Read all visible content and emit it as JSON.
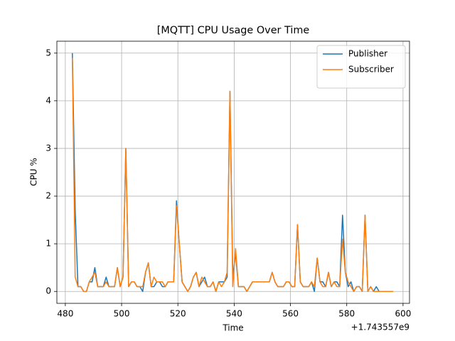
{
  "chart_data": {
    "type": "line",
    "title": "[MQTT] CPU Usage Over Time",
    "xlabel": "Time",
    "ylabel": "CPU %",
    "x_offset_label": "+1.743557e9",
    "x": [
      482.5,
      483.5,
      484.5,
      485.5,
      486.5,
      487.5,
      488.5,
      489.5,
      490.5,
      491.5,
      492.5,
      493.5,
      494.5,
      495.5,
      496.5,
      497.5,
      498.5,
      499.5,
      500.5,
      501.5,
      502.5,
      503.5,
      504.5,
      505.5,
      506.5,
      507.5,
      508.5,
      509.5,
      510.5,
      511.5,
      512.5,
      513.5,
      514.5,
      515.5,
      516.5,
      517.5,
      518.5,
      519.5,
      520.5,
      521.5,
      522.5,
      523.5,
      524.5,
      525.5,
      526.5,
      527.5,
      528.5,
      529.5,
      530.5,
      531.5,
      532.5,
      533.5,
      534.5,
      535.5,
      536.5,
      537.5,
      538.5,
      539.5,
      540.5,
      541.5,
      542.5,
      543.5,
      544.5,
      545.5,
      546.5,
      547.5,
      548.5,
      549.5,
      550.5,
      551.5,
      552.5,
      553.5,
      554.5,
      555.5,
      556.5,
      557.5,
      558.5,
      559.5,
      560.5,
      561.5,
      562.5,
      563.5,
      564.5,
      565.5,
      566.5,
      567.5,
      568.5,
      569.5,
      570.5,
      571.5,
      572.5,
      573.5,
      574.5,
      575.5,
      576.5,
      577.5,
      578.5,
      579.5,
      580.5,
      581.5,
      582.5,
      583.5,
      584.5,
      585.5,
      586.5,
      587.5,
      588.5,
      589.5,
      590.5,
      591.5,
      592.5,
      593.5,
      594.5,
      595.5,
      596.5
    ],
    "series": [
      {
        "name": "Publisher",
        "color": "#1f77b4",
        "values": [
          5.0,
          1.7,
          0.1,
          0.1,
          0.0,
          0.0,
          0.2,
          0.2,
          0.5,
          0.1,
          0.1,
          0.1,
          0.3,
          0.1,
          0.1,
          0.1,
          0.5,
          0.1,
          0.3,
          3.0,
          0.1,
          0.2,
          0.2,
          0.1,
          0.1,
          0.0,
          0.4,
          0.6,
          0.1,
          0.1,
          0.2,
          0.2,
          0.1,
          0.1,
          0.2,
          0.2,
          0.2,
          1.9,
          1.0,
          0.2,
          0.1,
          0.0,
          0.1,
          0.3,
          0.4,
          0.1,
          0.2,
          0.3,
          0.1,
          0.1,
          0.2,
          0.0,
          0.2,
          0.2,
          0.2,
          0.3,
          4.2,
          0.3,
          0.8,
          0.1,
          0.1,
          0.1,
          0.0,
          0.1,
          0.2,
          0.2,
          0.2,
          0.2,
          0.2,
          0.2,
          0.2,
          0.4,
          0.2,
          0.1,
          0.1,
          0.1,
          0.2,
          0.2,
          0.1,
          0.1,
          1.4,
          0.2,
          0.1,
          0.1,
          0.1,
          0.2,
          0.0,
          0.7,
          0.2,
          0.2,
          0.1,
          0.4,
          0.1,
          0.2,
          0.2,
          0.1,
          1.6,
          0.4,
          0.1,
          0.2,
          0.0,
          0.1,
          0.1,
          0.0,
          1.6,
          0.0,
          0.1,
          0.0,
          0.1,
          0.0,
          0.0,
          0.0,
          0.0,
          0.0,
          0.0
        ]
      },
      {
        "name": "Subscriber",
        "color": "#ff7f0e",
        "values": [
          4.9,
          0.3,
          0.1,
          0.1,
          0.0,
          0.0,
          0.2,
          0.3,
          0.4,
          0.1,
          0.1,
          0.1,
          0.2,
          0.1,
          0.1,
          0.1,
          0.5,
          0.1,
          0.3,
          3.0,
          0.1,
          0.2,
          0.2,
          0.1,
          0.1,
          0.1,
          0.4,
          0.6,
          0.1,
          0.3,
          0.2,
          0.2,
          0.2,
          0.1,
          0.2,
          0.2,
          0.2,
          1.8,
          1.0,
          0.2,
          0.1,
          0.0,
          0.1,
          0.3,
          0.4,
          0.1,
          0.3,
          0.2,
          0.1,
          0.1,
          0.2,
          0.0,
          0.2,
          0.1,
          0.2,
          0.4,
          4.2,
          0.1,
          0.9,
          0.1,
          0.1,
          0.1,
          0.0,
          0.1,
          0.2,
          0.2,
          0.2,
          0.2,
          0.2,
          0.2,
          0.2,
          0.4,
          0.2,
          0.1,
          0.1,
          0.1,
          0.2,
          0.2,
          0.1,
          0.1,
          1.4,
          0.2,
          0.1,
          0.1,
          0.1,
          0.2,
          0.1,
          0.7,
          0.2,
          0.1,
          0.1,
          0.4,
          0.1,
          0.2,
          0.1,
          0.1,
          1.1,
          0.4,
          0.2,
          0.1,
          0.0,
          0.1,
          0.1,
          0.0,
          1.6,
          0.0,
          0.1,
          0.0,
          0.0,
          0.0,
          0.0,
          0.0,
          0.0,
          0.0,
          0.0
        ]
      }
    ],
    "xlim": [
      477,
      602.3
    ],
    "ylim": [
      -0.25,
      5.25
    ],
    "xticks": [
      480,
      500,
      520,
      540,
      560,
      580,
      600
    ],
    "yticks": [
      0,
      1,
      2,
      3,
      4,
      5
    ],
    "grid": true,
    "legend": "upper right"
  }
}
